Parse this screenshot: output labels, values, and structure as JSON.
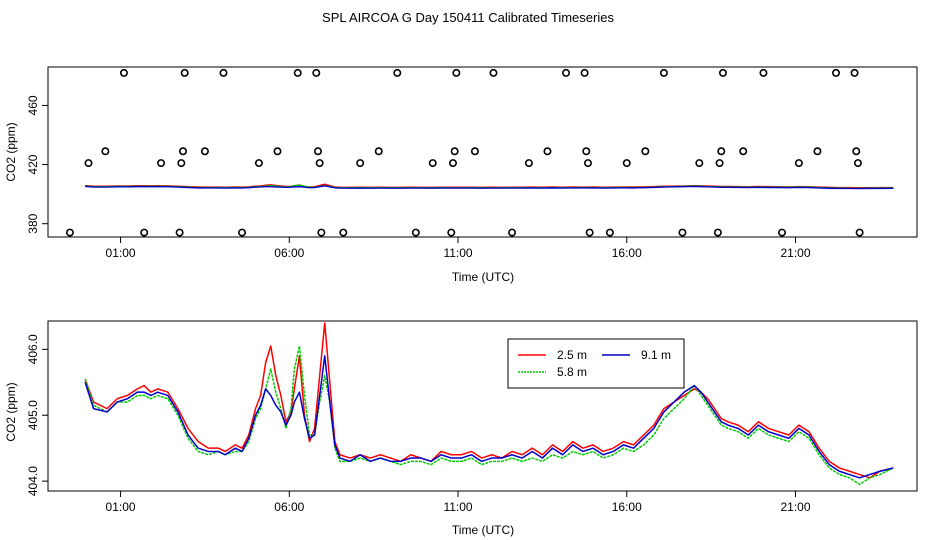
{
  "figure": {
    "title": "SPL AIRCOA G  Day 150411  Calibrated Timeseries"
  },
  "chart_data": [
    {
      "type": "scatter+line",
      "name": "top-panel",
      "xlabel": "Time (UTC)",
      "ylabel": "CO2 (ppm)",
      "x_tick_labels": [
        "01:00",
        "06:00",
        "11:00",
        "16:00",
        "21:00"
      ],
      "x_ticks_hours": [
        1,
        6,
        11,
        16,
        21
      ],
      "xlim_hours": [
        -1.15,
        24.6
      ],
      "y_ticks": [
        380,
        420,
        460
      ],
      "y_tick_labels": [
        "380",
        "420",
        "460"
      ],
      "ylim": [
        371,
        486
      ],
      "flag_points": [
        {
          "t": -0.5,
          "v": 374
        },
        {
          "t": 0.05,
          "v": 421
        },
        {
          "t": 0.55,
          "v": 429
        },
        {
          "t": 1.1,
          "v": 482
        },
        {
          "t": 1.7,
          "v": 374
        },
        {
          "t": 2.2,
          "v": 421
        },
        {
          "t": 2.75,
          "v": 374
        },
        {
          "t": 2.8,
          "v": 421
        },
        {
          "t": 2.85,
          "v": 429
        },
        {
          "t": 2.9,
          "v": 482
        },
        {
          "t": 3.5,
          "v": 429
        },
        {
          "t": 4.05,
          "v": 482
        },
        {
          "t": 4.6,
          "v": 374
        },
        {
          "t": 5.1,
          "v": 421
        },
        {
          "t": 5.65,
          "v": 429
        },
        {
          "t": 6.25,
          "v": 482
        },
        {
          "t": 6.8,
          "v": 482
        },
        {
          "t": 6.85,
          "v": 429
        },
        {
          "t": 6.9,
          "v": 421
        },
        {
          "t": 6.95,
          "v": 374
        },
        {
          "t": 7.6,
          "v": 374
        },
        {
          "t": 8.1,
          "v": 421
        },
        {
          "t": 8.65,
          "v": 429
        },
        {
          "t": 9.2,
          "v": 482
        },
        {
          "t": 9.75,
          "v": 374
        },
        {
          "t": 10.25,
          "v": 421
        },
        {
          "t": 10.8,
          "v": 374
        },
        {
          "t": 10.85,
          "v": 421
        },
        {
          "t": 10.9,
          "v": 429
        },
        {
          "t": 10.95,
          "v": 482
        },
        {
          "t": 11.5,
          "v": 429
        },
        {
          "t": 12.05,
          "v": 482
        },
        {
          "t": 12.6,
          "v": 374
        },
        {
          "t": 13.1,
          "v": 421
        },
        {
          "t": 13.65,
          "v": 429
        },
        {
          "t": 14.2,
          "v": 482
        },
        {
          "t": 14.75,
          "v": 482
        },
        {
          "t": 14.8,
          "v": 429
        },
        {
          "t": 14.85,
          "v": 421
        },
        {
          "t": 14.9,
          "v": 374
        },
        {
          "t": 15.5,
          "v": 374
        },
        {
          "t": 16.0,
          "v": 421
        },
        {
          "t": 16.55,
          "v": 429
        },
        {
          "t": 17.1,
          "v": 482
        },
        {
          "t": 17.65,
          "v": 374
        },
        {
          "t": 18.15,
          "v": 421
        },
        {
          "t": 18.7,
          "v": 374
        },
        {
          "t": 18.75,
          "v": 421
        },
        {
          "t": 18.8,
          "v": 429
        },
        {
          "t": 18.85,
          "v": 482
        },
        {
          "t": 19.45,
          "v": 429
        },
        {
          "t": 20.05,
          "v": 482
        },
        {
          "t": 20.6,
          "v": 374
        },
        {
          "t": 21.1,
          "v": 421
        },
        {
          "t": 21.65,
          "v": 429
        },
        {
          "t": 22.2,
          "v": 482
        },
        {
          "t": 22.75,
          "v": 482
        },
        {
          "t": 22.8,
          "v": 429
        },
        {
          "t": 22.85,
          "v": 421
        },
        {
          "t": 22.9,
          "v": 374
        }
      ],
      "series_note": "three inlet series (2.5 m, 5.8 m, 9.1 m) drawn near 405 ppm"
    },
    {
      "type": "line",
      "name": "bottom-panel",
      "xlabel": "Time (UTC)",
      "ylabel": "CO2 (ppm)",
      "x_tick_labels": [
        "01:00",
        "06:00",
        "11:00",
        "16:00",
        "21:00"
      ],
      "x_ticks_hours": [
        1,
        6,
        11,
        16,
        21
      ],
      "xlim_hours": [
        -1.15,
        24.6
      ],
      "y_ticks": [
        404.0,
        405.0,
        406.0
      ],
      "y_tick_labels": [
        "404.0",
        "405.0",
        "406.0"
      ],
      "ylim": [
        403.85,
        406.43
      ],
      "legend": {
        "position": "top-center",
        "entries": [
          "2.5 m",
          "9.1 m",
          "5.8 m"
        ]
      },
      "series": [
        {
          "name": "2.5 m",
          "color": "#ff0000",
          "t": [
            -0.05,
            0.2,
            0.6,
            0.9,
            1.2,
            1.5,
            1.7,
            1.9,
            2.1,
            2.4,
            2.7,
            3.0,
            3.3,
            3.6,
            3.9,
            4.1,
            4.4,
            4.6,
            4.8,
            5.0,
            5.15,
            5.3,
            5.45,
            5.6,
            5.75,
            5.9,
            6.05,
            6.15,
            6.3,
            6.45,
            6.6,
            6.75,
            6.9,
            7.05,
            7.2,
            7.35,
            7.5,
            7.8,
            8.1,
            8.4,
            8.7,
            9.0,
            9.3,
            9.6,
            9.9,
            10.2,
            10.5,
            10.8,
            11.1,
            11.4,
            11.7,
            12.0,
            12.3,
            12.6,
            12.9,
            13.2,
            13.5,
            13.8,
            14.1,
            14.4,
            14.7,
            15.0,
            15.3,
            15.6,
            15.9,
            16.2,
            16.5,
            16.8,
            17.1,
            17.4,
            17.7,
            18.0,
            18.2,
            18.4,
            18.6,
            18.8,
            19.0,
            19.3,
            19.6,
            19.9,
            20.2,
            20.5,
            20.8,
            21.1,
            21.4,
            21.7,
            22.0,
            22.3,
            22.6,
            22.9,
            23.2,
            23.5,
            23.9
          ],
          "v": [
            405.55,
            405.2,
            405.1,
            405.25,
            405.3,
            405.4,
            405.45,
            405.35,
            405.4,
            405.35,
            405.1,
            404.8,
            404.6,
            404.5,
            404.5,
            404.45,
            404.55,
            404.5,
            404.7,
            405.1,
            405.3,
            405.8,
            406.05,
            405.6,
            405.3,
            404.9,
            405.05,
            405.4,
            405.9,
            405.0,
            404.6,
            404.8,
            405.6,
            406.4,
            405.5,
            404.6,
            404.4,
            404.35,
            404.4,
            404.35,
            404.4,
            404.35,
            404.3,
            404.4,
            404.35,
            404.3,
            404.45,
            404.4,
            404.4,
            404.45,
            404.35,
            404.4,
            404.35,
            404.45,
            404.4,
            404.5,
            404.4,
            404.55,
            404.45,
            404.6,
            404.5,
            404.55,
            404.45,
            404.5,
            404.6,
            404.55,
            404.7,
            404.85,
            405.1,
            405.2,
            405.3,
            405.4,
            405.35,
            405.25,
            405.1,
            404.95,
            404.9,
            404.85,
            404.75,
            404.9,
            404.8,
            404.75,
            404.7,
            404.85,
            404.75,
            404.5,
            404.3,
            404.2,
            404.15,
            404.1,
            404.05,
            404.15,
            404.2
          ]
        },
        {
          "name": "5.8 m",
          "color": "#00cc00",
          "t": [
            -0.05,
            0.2,
            0.6,
            0.9,
            1.2,
            1.5,
            1.7,
            1.9,
            2.1,
            2.4,
            2.7,
            3.0,
            3.3,
            3.6,
            3.9,
            4.1,
            4.4,
            4.6,
            4.8,
            5.0,
            5.15,
            5.3,
            5.45,
            5.6,
            5.75,
            5.9,
            6.05,
            6.15,
            6.3,
            6.45,
            6.6,
            6.75,
            6.9,
            7.05,
            7.2,
            7.35,
            7.5,
            7.8,
            8.1,
            8.4,
            8.7,
            9.0,
            9.3,
            9.6,
            9.9,
            10.2,
            10.5,
            10.8,
            11.1,
            11.4,
            11.7,
            12.0,
            12.3,
            12.6,
            12.9,
            13.2,
            13.5,
            13.8,
            14.1,
            14.4,
            14.7,
            15.0,
            15.3,
            15.6,
            15.9,
            16.2,
            16.5,
            16.8,
            17.1,
            17.4,
            17.7,
            18.0,
            18.2,
            18.4,
            18.6,
            18.8,
            19.0,
            19.3,
            19.6,
            19.9,
            20.2,
            20.5,
            20.8,
            21.1,
            21.4,
            21.7,
            22.0,
            22.3,
            22.6,
            22.9,
            23.2,
            23.5,
            23.9
          ],
          "v": [
            405.55,
            405.15,
            405.05,
            405.2,
            405.2,
            405.3,
            405.3,
            405.25,
            405.3,
            405.25,
            405.0,
            404.65,
            404.45,
            404.4,
            404.45,
            404.4,
            404.45,
            404.45,
            404.6,
            404.95,
            405.1,
            405.4,
            405.7,
            405.35,
            405.1,
            404.8,
            405.1,
            405.7,
            406.05,
            405.3,
            404.7,
            404.7,
            405.2,
            405.6,
            405.2,
            404.5,
            404.3,
            404.3,
            404.35,
            404.3,
            404.35,
            404.3,
            404.25,
            404.3,
            404.3,
            404.25,
            404.35,
            404.3,
            404.3,
            404.35,
            404.25,
            404.3,
            404.3,
            404.35,
            404.3,
            404.35,
            404.3,
            404.4,
            404.35,
            404.45,
            404.4,
            404.45,
            404.35,
            404.4,
            404.5,
            404.45,
            404.55,
            404.7,
            404.95,
            405.1,
            405.25,
            405.45,
            405.3,
            405.15,
            405.0,
            404.85,
            404.8,
            404.75,
            404.65,
            404.8,
            404.7,
            404.65,
            404.6,
            404.75,
            404.65,
            404.4,
            404.2,
            404.1,
            404.05,
            403.95,
            404.05,
            404.1,
            404.2
          ]
        },
        {
          "name": "9.1 m",
          "color": "#0000cc",
          "t": [
            -0.05,
            0.2,
            0.6,
            0.9,
            1.2,
            1.5,
            1.7,
            1.9,
            2.1,
            2.4,
            2.7,
            3.0,
            3.3,
            3.6,
            3.9,
            4.1,
            4.4,
            4.6,
            4.8,
            5.0,
            5.15,
            5.3,
            5.45,
            5.6,
            5.75,
            5.9,
            6.05,
            6.15,
            6.3,
            6.45,
            6.6,
            6.75,
            6.9,
            7.05,
            7.2,
            7.35,
            7.5,
            7.8,
            8.1,
            8.4,
            8.7,
            9.0,
            9.3,
            9.6,
            9.9,
            10.2,
            10.5,
            10.8,
            11.1,
            11.4,
            11.7,
            12.0,
            12.3,
            12.6,
            12.9,
            13.2,
            13.5,
            13.8,
            14.1,
            14.4,
            14.7,
            15.0,
            15.3,
            15.6,
            15.9,
            16.2,
            16.5,
            16.8,
            17.1,
            17.4,
            17.7,
            18.0,
            18.2,
            18.4,
            18.6,
            18.8,
            19.0,
            19.3,
            19.6,
            19.9,
            20.2,
            20.5,
            20.8,
            21.1,
            21.4,
            21.7,
            22.0,
            22.3,
            22.6,
            22.9,
            23.2,
            23.5,
            23.9
          ],
          "v": [
            405.5,
            405.1,
            405.05,
            405.2,
            405.25,
            405.35,
            405.35,
            405.3,
            405.35,
            405.3,
            405.05,
            404.7,
            404.5,
            404.45,
            404.45,
            404.4,
            404.5,
            404.45,
            404.65,
            405.0,
            405.15,
            405.4,
            405.3,
            405.15,
            405.05,
            404.85,
            405.0,
            405.2,
            405.35,
            404.95,
            404.65,
            404.7,
            405.3,
            405.9,
            405.2,
            404.55,
            404.35,
            404.3,
            404.4,
            404.3,
            404.35,
            404.3,
            404.3,
            404.35,
            404.35,
            404.3,
            404.4,
            404.35,
            404.35,
            404.4,
            404.3,
            404.35,
            404.35,
            404.4,
            404.35,
            404.45,
            404.35,
            404.5,
            404.4,
            404.55,
            404.45,
            404.5,
            404.4,
            404.45,
            404.55,
            404.5,
            404.65,
            404.8,
            405.05,
            405.2,
            405.35,
            405.45,
            405.35,
            405.2,
            405.05,
            404.9,
            404.85,
            404.8,
            404.7,
            404.85,
            404.75,
            404.7,
            404.65,
            404.8,
            404.7,
            404.45,
            404.25,
            404.15,
            404.1,
            404.05,
            404.1,
            404.15,
            404.2
          ]
        }
      ]
    }
  ]
}
